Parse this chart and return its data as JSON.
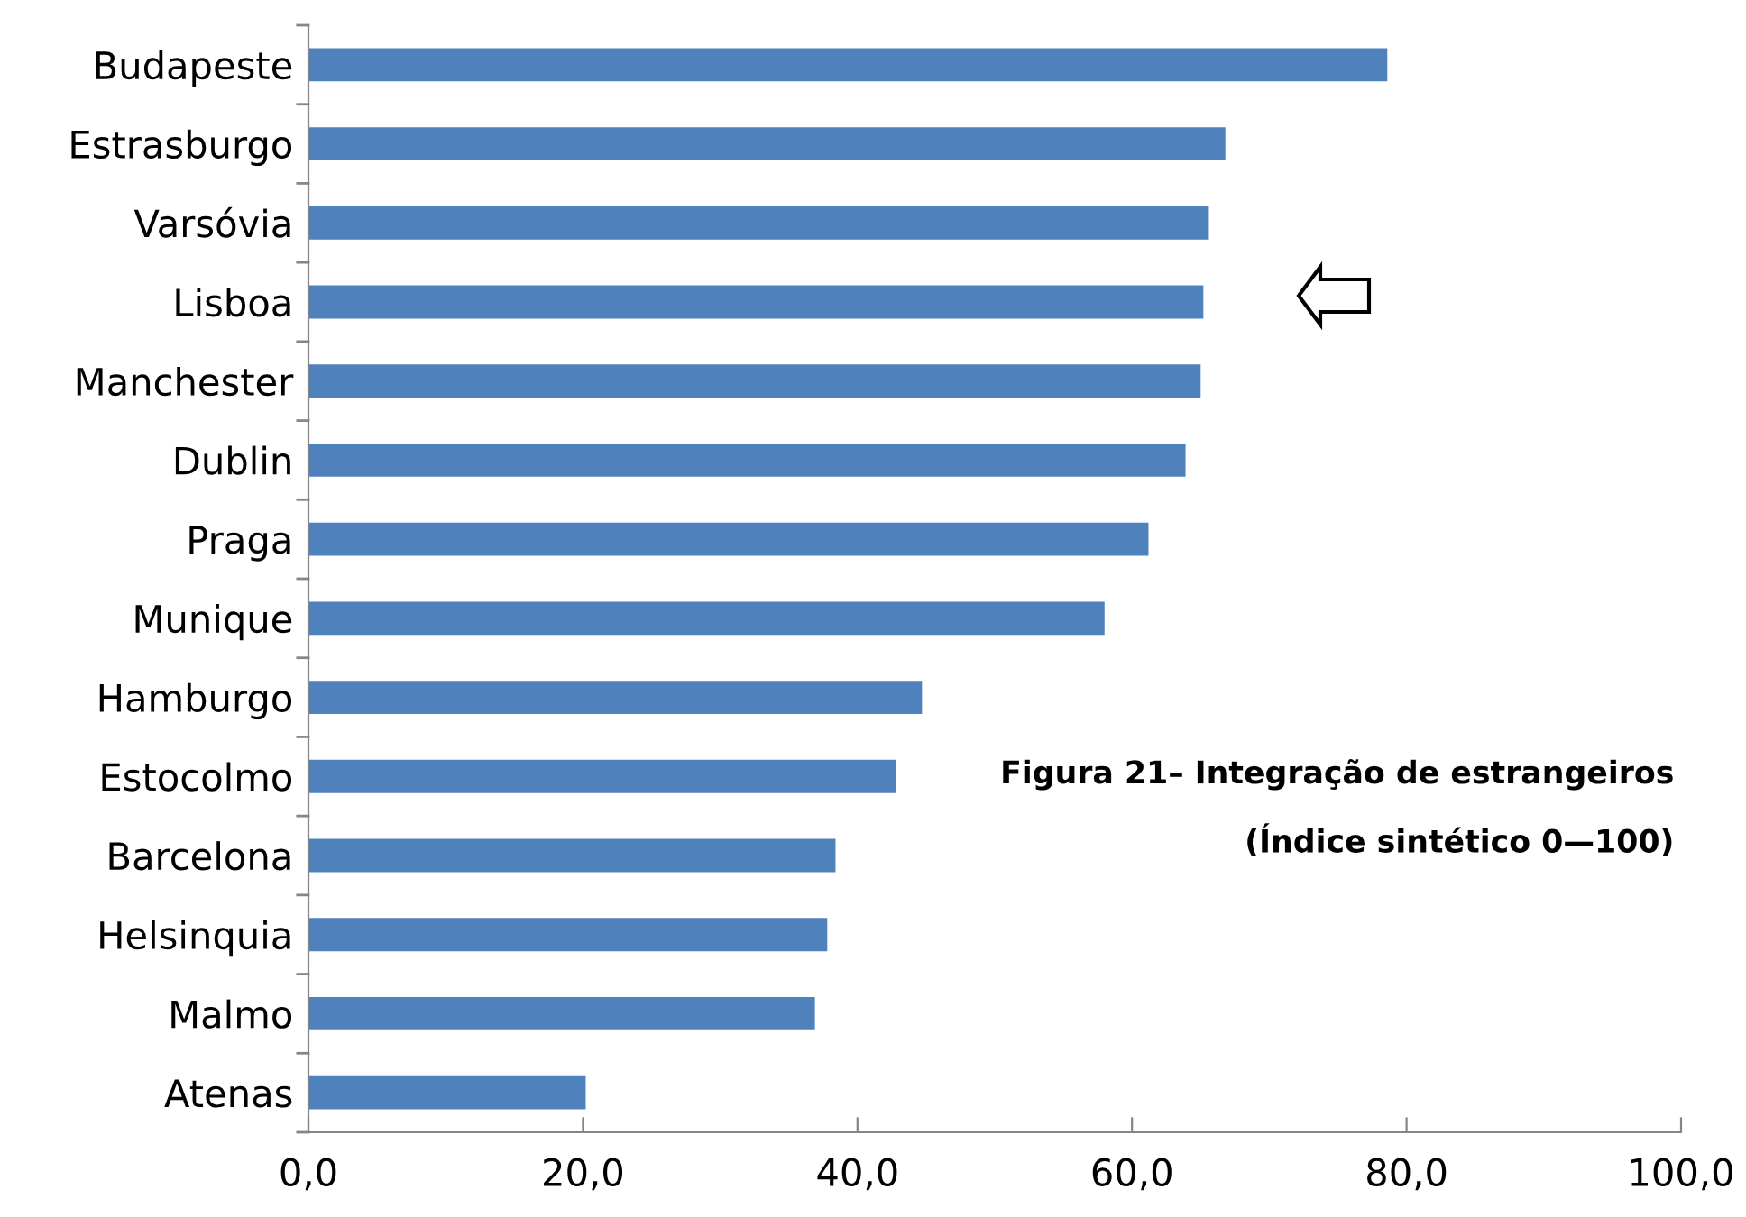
{
  "chart_data": {
    "type": "bar",
    "orientation": "horizontal",
    "title": "Figura 21– Integração de estrangeiros",
    "subtitle": "(Índice sintético 0—100)",
    "categories": [
      "Budapeste",
      "Estrasburgo",
      "Varsóvia",
      "Lisboa",
      "Manchester",
      "Dublin",
      "Praga",
      "Munique",
      "Hamburgo",
      "Estocolmo",
      "Barcelona",
      "Helsinquia",
      "Malmo",
      "Atenas"
    ],
    "values": [
      78.6,
      66.8,
      65.6,
      65.2,
      65.0,
      63.9,
      61.2,
      58.0,
      44.7,
      42.8,
      38.4,
      37.8,
      36.9,
      20.2
    ],
    "color": "#4f81bd",
    "xlim": [
      0,
      100
    ],
    "xticks": [
      {
        "value": 0,
        "label": "0,0"
      },
      {
        "value": 20,
        "label": "20,0"
      },
      {
        "value": 40,
        "label": "40,0"
      },
      {
        "value": 60,
        "label": "60,0"
      },
      {
        "value": 80,
        "label": "80,0"
      },
      {
        "value": 100,
        "label": "100,0"
      }
    ],
    "grid": false,
    "legend": false
  }
}
